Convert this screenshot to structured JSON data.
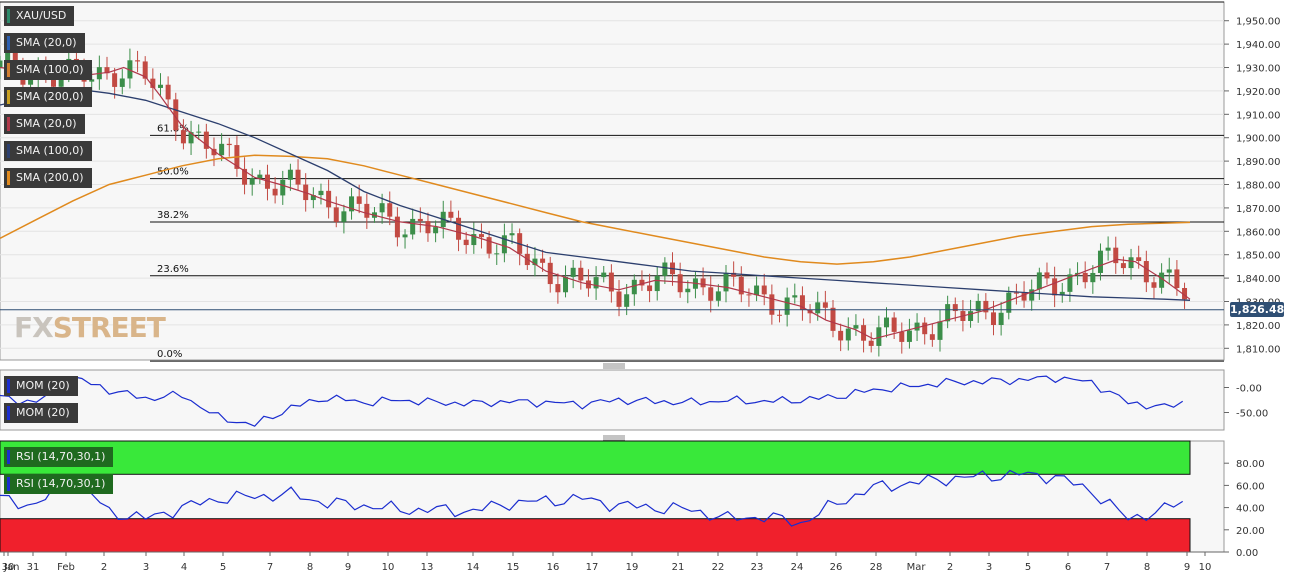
{
  "symbol": "XAU/USD",
  "indicator_labels": {
    "price": [
      "SMA (20,0)",
      "SMA (100,0)",
      "SMA (200,0)",
      "SMA (20,0)",
      "SMA (100,0)",
      "SMA (200,0)"
    ],
    "momentum": [
      "MOM (20)",
      "MOM (20)"
    ],
    "rsi": [
      "RSI (14,70,30,1)",
      "RSI (14,70,30,1)"
    ]
  },
  "colors": {
    "bull": "#3c8e4a",
    "bear": "#c24a43",
    "sma20": "#b0384a",
    "sma100": "#2c3f6e",
    "sma200": "#e08a1e",
    "mom": "#1b2dcf",
    "rsi": "#1b2dcf",
    "overbought": "#39e83a",
    "oversold": "#f0202c"
  },
  "watermark": {
    "fx": "FX",
    "street": "STREET"
  },
  "current_price": "1,826.48",
  "chart_data": [
    {
      "type": "candlestick",
      "title": "XAU/USD",
      "y_ticks": [
        "1,950.00",
        "1,940.00",
        "1,930.00",
        "1,920.00",
        "1,910.00",
        "1,900.00",
        "1,890.00",
        "1,880.00",
        "1,870.00",
        "1,860.00",
        "1,850.00",
        "1,840.00",
        "1,830.00",
        "1,820.00",
        "1,810.00"
      ],
      "ylim": [
        1805,
        1958
      ],
      "x_ticks": [
        "Jan",
        "30",
        "31",
        "Feb",
        "2",
        "3",
        "4",
        "5",
        "7",
        "8",
        "9",
        "10",
        "13",
        "14",
        "15",
        "16",
        "17",
        "19",
        "21",
        "22",
        "23",
        "24",
        "26",
        "28",
        "Mar",
        "2",
        "3",
        "5",
        "6",
        "7",
        "8",
        "9",
        "10"
      ],
      "fibonacci": [
        {
          "label": "61.8%",
          "value": 1901
        },
        {
          "label": "50.0%",
          "value": 1882.5
        },
        {
          "label": "38.2%",
          "value": 1864
        },
        {
          "label": "23.6%",
          "value": 1841
        },
        {
          "label": "0.0%",
          "value": 1804.5
        }
      ],
      "top_level": 1958,
      "current_price": 1826.48,
      "sma_20": [
        [
          0,
          1930
        ],
        [
          2,
          1926
        ],
        [
          3,
          1928
        ],
        [
          3.4,
          1930
        ],
        [
          4,
          1926
        ],
        [
          4.4,
          1918
        ],
        [
          5,
          1905
        ],
        [
          6,
          1893
        ],
        [
          7,
          1883
        ],
        [
          7.7,
          1880
        ],
        [
          8.5,
          1876
        ],
        [
          9,
          1873
        ],
        [
          10,
          1868
        ],
        [
          11,
          1864
        ],
        [
          12,
          1862
        ],
        [
          13,
          1858
        ],
        [
          14,
          1853
        ],
        [
          15,
          1843
        ],
        [
          16,
          1838
        ],
        [
          17,
          1835
        ],
        [
          18,
          1839
        ],
        [
          19,
          1838
        ],
        [
          20,
          1836
        ],
        [
          21,
          1832
        ],
        [
          22,
          1828
        ],
        [
          22.7,
          1822
        ],
        [
          23.5,
          1818
        ],
        [
          24,
          1814
        ],
        [
          25,
          1818
        ],
        [
          26,
          1822
        ],
        [
          27,
          1826
        ],
        [
          28,
          1832
        ],
        [
          29,
          1838
        ],
        [
          30,
          1844
        ],
        [
          30.7,
          1848
        ],
        [
          31.2,
          1847
        ],
        [
          32,
          1839
        ],
        [
          32.7,
          1831
        ]
      ],
      "sma_100": [
        [
          0,
          1914
        ],
        [
          2,
          1921
        ],
        [
          3,
          1919
        ],
        [
          4,
          1916
        ],
        [
          5,
          1911
        ],
        [
          6,
          1906
        ],
        [
          7,
          1900
        ],
        [
          8,
          1893
        ],
        [
          9,
          1886
        ],
        [
          10,
          1877
        ],
        [
          11,
          1871
        ],
        [
          12,
          1866
        ],
        [
          13,
          1861
        ],
        [
          14,
          1856
        ],
        [
          15,
          1851
        ],
        [
          16,
          1849
        ],
        [
          17,
          1847
        ],
        [
          18,
          1845
        ],
        [
          19,
          1843
        ],
        [
          20,
          1842
        ],
        [
          21,
          1841
        ],
        [
          22,
          1840
        ],
        [
          23,
          1839
        ],
        [
          24,
          1838
        ],
        [
          25,
          1837
        ],
        [
          26,
          1836
        ],
        [
          27,
          1835
        ],
        [
          28,
          1834
        ],
        [
          29,
          1833
        ],
        [
          30,
          1832
        ],
        [
          31,
          1831.5
        ],
        [
          32,
          1831
        ],
        [
          32.7,
          1830.5
        ]
      ],
      "sma_200": [
        [
          0,
          1857
        ],
        [
          1,
          1865
        ],
        [
          2,
          1873
        ],
        [
          3,
          1880
        ],
        [
          4,
          1884
        ],
        [
          5,
          1888
        ],
        [
          6,
          1891
        ],
        [
          7,
          1892.5
        ],
        [
          8,
          1892
        ],
        [
          9,
          1891
        ],
        [
          10,
          1888
        ],
        [
          11,
          1884
        ],
        [
          12,
          1880
        ],
        [
          13,
          1876
        ],
        [
          14,
          1872
        ],
        [
          15,
          1868
        ],
        [
          16,
          1864
        ],
        [
          17,
          1861
        ],
        [
          18,
          1858
        ],
        [
          19,
          1855
        ],
        [
          20,
          1852
        ],
        [
          21,
          1849
        ],
        [
          22,
          1847
        ],
        [
          23,
          1846
        ],
        [
          24,
          1847
        ],
        [
          25,
          1849
        ],
        [
          26,
          1852
        ],
        [
          27,
          1855
        ],
        [
          28,
          1858
        ],
        [
          29,
          1860
        ],
        [
          30,
          1862
        ],
        [
          31,
          1863
        ],
        [
          32,
          1863.5
        ],
        [
          32.7,
          1863.8
        ]
      ]
    },
    {
      "type": "line",
      "title": "MOM (20)",
      "y_ticks": [
        "-0.00",
        "-50.00"
      ],
      "ylim": [
        -85,
        35
      ],
      "values": [
        [
          0,
          -20
        ],
        [
          1,
          -30
        ],
        [
          2,
          20
        ],
        [
          3,
          -5
        ],
        [
          4,
          -22
        ],
        [
          5,
          -15
        ],
        [
          6,
          -60
        ],
        [
          7,
          -75
        ],
        [
          8,
          -40
        ],
        [
          9,
          -20
        ],
        [
          10,
          -30
        ],
        [
          11,
          -25
        ],
        [
          12,
          -30
        ],
        [
          13,
          -32
        ],
        [
          14,
          -28
        ],
        [
          15,
          -30
        ],
        [
          16,
          -33
        ],
        [
          17,
          -25
        ],
        [
          18,
          -28
        ],
        [
          19,
          -30
        ],
        [
          20,
          -26
        ],
        [
          21,
          -28
        ],
        [
          22,
          -25
        ],
        [
          23,
          -18
        ],
        [
          24,
          -5
        ],
        [
          25,
          2
        ],
        [
          26,
          10
        ],
        [
          27,
          12
        ],
        [
          28,
          15
        ],
        [
          29,
          20
        ],
        [
          30,
          10
        ],
        [
          31,
          -30
        ],
        [
          32,
          -40
        ],
        [
          32.7,
          -25
        ]
      ]
    },
    {
      "type": "line",
      "title": "RSI (14,70,30,1)",
      "y_ticks": [
        "80.00",
        "60.00",
        "40.00",
        "20.00",
        "0.00"
      ],
      "ylim": [
        0,
        100
      ],
      "overbought": 70,
      "oversold": 30,
      "values": [
        [
          0,
          48
        ],
        [
          1,
          42
        ],
        [
          2,
          68
        ],
        [
          3,
          36
        ],
        [
          4,
          30
        ],
        [
          5,
          40
        ],
        [
          6,
          48
        ],
        [
          7,
          50
        ],
        [
          8,
          52
        ],
        [
          9,
          44
        ],
        [
          10,
          42
        ],
        [
          11,
          38
        ],
        [
          12,
          38
        ],
        [
          13,
          37
        ],
        [
          14,
          44
        ],
        [
          15,
          46
        ],
        [
          16,
          48
        ],
        [
          17,
          42
        ],
        [
          18,
          40
        ],
        [
          19,
          38
        ],
        [
          20,
          30
        ],
        [
          21,
          32
        ],
        [
          22,
          26
        ],
        [
          23,
          44
        ],
        [
          24,
          58
        ],
        [
          25,
          62
        ],
        [
          26,
          66
        ],
        [
          27,
          68
        ],
        [
          28,
          70
        ],
        [
          29,
          68
        ],
        [
          30,
          55
        ],
        [
          31,
          30
        ],
        [
          32,
          38
        ],
        [
          32.7,
          49
        ]
      ]
    }
  ]
}
